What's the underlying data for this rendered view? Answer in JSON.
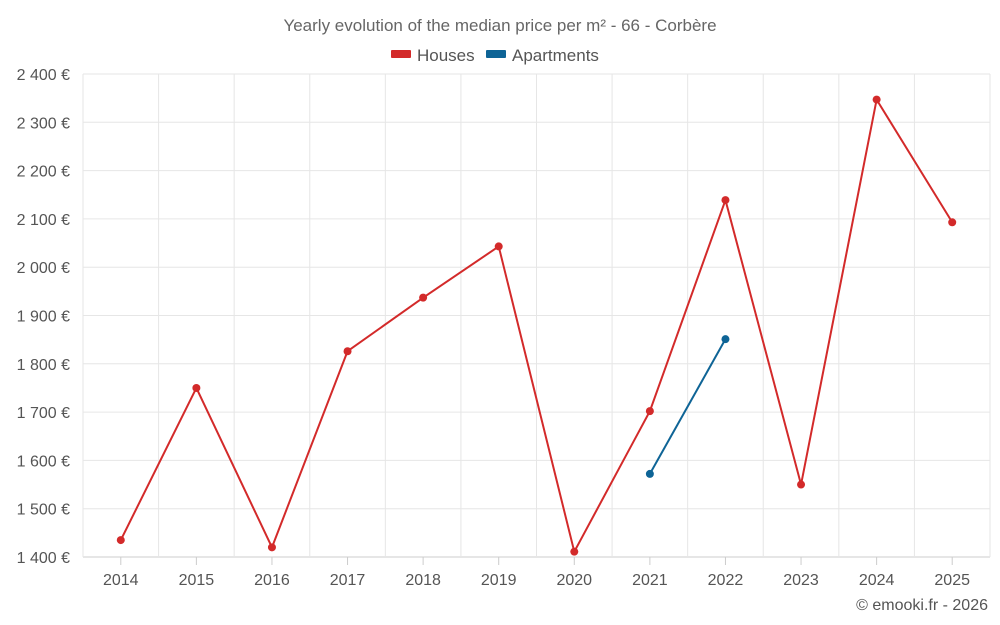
{
  "chart_data": {
    "type": "line",
    "title": "Yearly evolution of the median price per m² - 66 - Corbère",
    "categories": [
      "2014",
      "2015",
      "2016",
      "2017",
      "2018",
      "2019",
      "2020",
      "2021",
      "2022",
      "2023",
      "2024",
      "2025"
    ],
    "series": [
      {
        "name": "Houses",
        "color": "#d32a2a",
        "values": [
          1435,
          1750,
          1420,
          1826,
          1937,
          2043,
          1411,
          1702,
          2139,
          1550,
          2347,
          2093
        ]
      },
      {
        "name": "Apartments",
        "color": "#0e6496",
        "values": [
          null,
          null,
          null,
          null,
          null,
          null,
          null,
          1572,
          1851,
          null,
          null,
          null
        ]
      }
    ],
    "ylim": [
      1400,
      2400
    ],
    "yticks": [
      1400,
      1500,
      1600,
      1700,
      1800,
      1900,
      2000,
      2100,
      2200,
      2300,
      2400
    ],
    "ytick_labels": [
      "1 400 €",
      "1 500 €",
      "1 600 €",
      "1 700 €",
      "1 800 €",
      "1 900 €",
      "2 000 €",
      "2 100 €",
      "2 200 €",
      "2 300 €",
      "2 400 €"
    ],
    "xlabel": "",
    "ylabel": "",
    "grid": true,
    "legend_position": "top-center"
  },
  "credit": "© emooki.fr - 2026"
}
